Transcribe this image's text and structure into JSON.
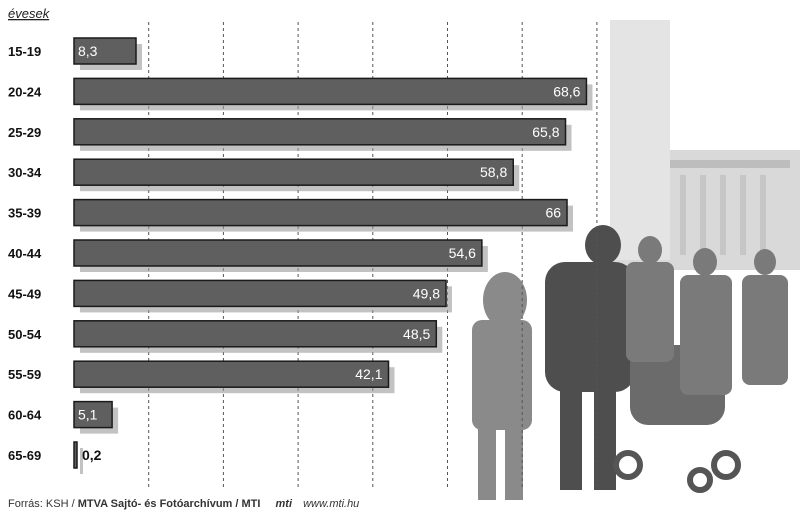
{
  "chart_data": {
    "type": "bar",
    "orientation": "horizontal",
    "unit_label": "évesek",
    "categories": [
      "15-19",
      "20-24",
      "25-29",
      "30-34",
      "35-39",
      "40-44",
      "45-49",
      "50-54",
      "55-59",
      "60-64",
      "65-69"
    ],
    "values": [
      8.3,
      68.6,
      65.8,
      58.8,
      66,
      54.6,
      49.8,
      48.5,
      42.1,
      5.1,
      0.2
    ],
    "value_labels": [
      "8,3",
      "68,6",
      "65,8",
      "58,8",
      "66",
      "54,6",
      "49,8",
      "48,5",
      "42,1",
      "5,1",
      "0,2"
    ],
    "xlim": [
      0,
      72
    ],
    "grid": true,
    "bar_color": "#5f5f5f",
    "background_photo": "silhouettes-of-pedestrians-with-stroller"
  },
  "footer": {
    "source_prefix": "Forrás: KSH /",
    "source_bold": "MTVA Sajtó- és Fotóarchívum / MTI",
    "logo": "mti",
    "url": "www.mti.hu"
  }
}
